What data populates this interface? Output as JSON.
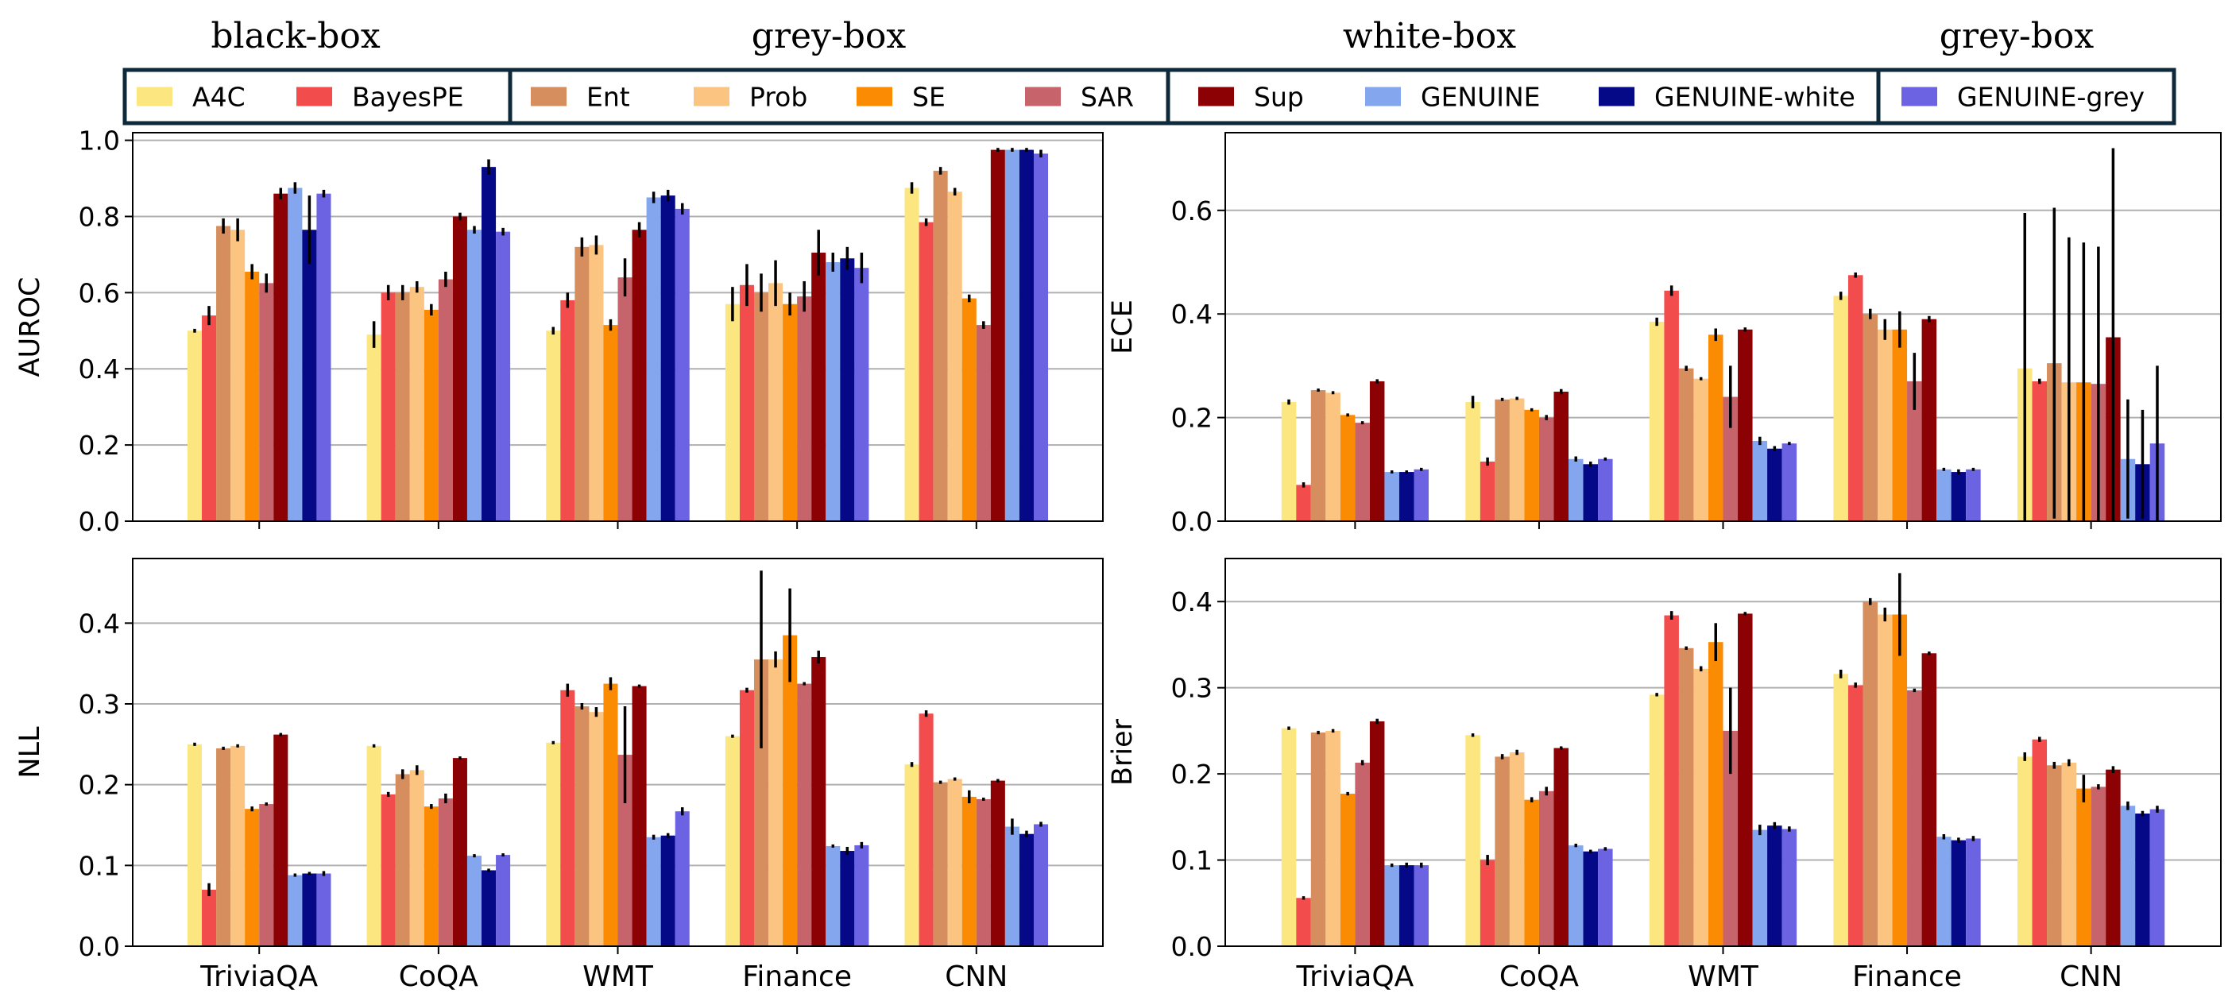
{
  "legend": {
    "groups": [
      {
        "title": "black-box",
        "entries": [
          "A4C",
          "BayesPE"
        ]
      },
      {
        "title": "grey-box",
        "entries": [
          "Ent",
          "Prob",
          "SE",
          "SAR"
        ]
      },
      {
        "title": "white-box",
        "entries": [
          "Sup",
          "GENUINE",
          "GENUINE-white"
        ]
      },
      {
        "title": "grey-box",
        "entries": [
          "GENUINE-grey"
        ]
      }
    ],
    "colors": {
      "A4C": "#FBE680",
      "BayesPE": "#F24C4C",
      "Ent": "#D68E5E",
      "Prob": "#FBC480",
      "SE": "#FC8B04",
      "SAR": "#C7636A",
      "Sup": "#8C0204",
      "GENUINE": "#84A6EE",
      "GENUINE-white": "#050887",
      "GENUINE-grey": "#6C63E2"
    },
    "frame_color": "#0E2A3A"
  },
  "chart_data": [
    {
      "type": "bar",
      "ylabel": "AUROC",
      "ylim": [
        0,
        1.02
      ],
      "yticks": [
        "0.0",
        "0.2",
        "0.4",
        "0.6",
        "0.8",
        "1.0"
      ],
      "grid": "horizontal",
      "categories": [
        "TriviaQA",
        "CoQA",
        "WMT",
        "Finance",
        "CNN"
      ],
      "show_xticklabels": false,
      "series": [
        {
          "name": "A4C",
          "values": [
            0.5,
            0.49,
            0.5,
            0.57,
            0.875
          ],
          "errors": [
            0.005,
            0.035,
            0.01,
            0.045,
            0.015
          ]
        },
        {
          "name": "BayesPE",
          "values": [
            0.54,
            0.6,
            0.58,
            0.62,
            0.785
          ],
          "errors": [
            0.025,
            0.02,
            0.02,
            0.055,
            0.01
          ]
        },
        {
          "name": "Ent",
          "values": [
            0.775,
            0.6,
            0.72,
            0.6,
            0.92
          ],
          "errors": [
            0.02,
            0.02,
            0.025,
            0.05,
            0.01
          ]
        },
        {
          "name": "Prob",
          "values": [
            0.765,
            0.615,
            0.725,
            0.625,
            0.865
          ],
          "errors": [
            0.03,
            0.015,
            0.025,
            0.06,
            0.01
          ]
        },
        {
          "name": "SE",
          "values": [
            0.655,
            0.555,
            0.515,
            0.57,
            0.585
          ],
          "errors": [
            0.02,
            0.015,
            0.015,
            0.03,
            0.01
          ]
        },
        {
          "name": "SAR",
          "values": [
            0.625,
            0.635,
            0.64,
            0.59,
            0.515
          ],
          "errors": [
            0.025,
            0.02,
            0.05,
            0.04,
            0.01
          ]
        },
        {
          "name": "Sup",
          "values": [
            0.86,
            0.8,
            0.765,
            0.705,
            0.975
          ],
          "errors": [
            0.015,
            0.01,
            0.02,
            0.06,
            0.005
          ]
        },
        {
          "name": "GENUINE",
          "values": [
            0.875,
            0.765,
            0.85,
            0.68,
            0.975
          ],
          "errors": [
            0.015,
            0.01,
            0.015,
            0.025,
            0.005
          ]
        },
        {
          "name": "GENUINE-white",
          "values": [
            0.765,
            0.93,
            0.855,
            0.69,
            0.975
          ],
          "errors": [
            0.09,
            0.02,
            0.015,
            0.03,
            0.005
          ]
        },
        {
          "name": "GENUINE-grey",
          "values": [
            0.86,
            0.76,
            0.82,
            0.665,
            0.965
          ],
          "errors": [
            0.01,
            0.01,
            0.015,
            0.04,
            0.01
          ]
        }
      ]
    },
    {
      "type": "bar",
      "ylabel": "ECE",
      "ylim": [
        0,
        0.75
      ],
      "yticks": [
        "0.0",
        "0.2",
        "0.4",
        "0.6"
      ],
      "grid": "horizontal",
      "categories": [
        "TriviaQA",
        "CoQA",
        "WMT",
        "Finance",
        "CNN"
      ],
      "show_xticklabels": false,
      "series": [
        {
          "name": "A4C",
          "values": [
            0.23,
            0.23,
            0.385,
            0.435,
            0.295
          ],
          "errors": [
            0.005,
            0.012,
            0.008,
            0.008,
            0.3
          ]
        },
        {
          "name": "BayesPE",
          "values": [
            0.07,
            0.115,
            0.445,
            0.475,
            0.27
          ],
          "errors": [
            0.005,
            0.008,
            0.01,
            0.005,
            0.005
          ]
        },
        {
          "name": "Ent",
          "values": [
            0.253,
            0.235,
            0.295,
            0.4,
            0.305
          ],
          "errors": [
            0.003,
            0.003,
            0.005,
            0.01,
            0.3
          ]
        },
        {
          "name": "Prob",
          "values": [
            0.248,
            0.237,
            0.275,
            0.37,
            0.268
          ],
          "errors": [
            0.003,
            0.003,
            0.003,
            0.02,
            0.28
          ]
        },
        {
          "name": "SE",
          "values": [
            0.205,
            0.215,
            0.36,
            0.37,
            0.268
          ],
          "errors": [
            0.003,
            0.003,
            0.012,
            0.035,
            0.27
          ]
        },
        {
          "name": "SAR",
          "values": [
            0.19,
            0.2,
            0.24,
            0.27,
            0.265
          ],
          "errors": [
            0.003,
            0.005,
            0.06,
            0.055,
            0.265
          ]
        },
        {
          "name": "Sup",
          "values": [
            0.27,
            0.25,
            0.37,
            0.39,
            0.355
          ],
          "errors": [
            0.004,
            0.005,
            0.004,
            0.006,
            0.365
          ]
        },
        {
          "name": "GENUINE",
          "values": [
            0.095,
            0.12,
            0.155,
            0.1,
            0.12
          ],
          "errors": [
            0.003,
            0.005,
            0.008,
            0.003,
            0.115
          ]
        },
        {
          "name": "GENUINE-white",
          "values": [
            0.095,
            0.11,
            0.14,
            0.095,
            0.11
          ],
          "errors": [
            0.003,
            0.005,
            0.005,
            0.005,
            0.105
          ]
        },
        {
          "name": "GENUINE-grey",
          "values": [
            0.1,
            0.12,
            0.15,
            0.1,
            0.15
          ],
          "errors": [
            0.003,
            0.003,
            0.003,
            0.003,
            0.15
          ]
        }
      ]
    },
    {
      "type": "bar",
      "ylabel": "NLL",
      "ylim": [
        0,
        0.48
      ],
      "yticks": [
        "0.0",
        "0.1",
        "0.2",
        "0.3",
        "0.4"
      ],
      "grid": "horizontal",
      "categories": [
        "TriviaQA",
        "CoQA",
        "WMT",
        "Finance",
        "CNN"
      ],
      "show_xticklabels": true,
      "series": [
        {
          "name": "A4C",
          "values": [
            0.25,
            0.248,
            0.252,
            0.26,
            0.225
          ],
          "errors": [
            0.002,
            0.002,
            0.002,
            0.002,
            0.003
          ]
        },
        {
          "name": "BayesPE",
          "values": [
            0.07,
            0.188,
            0.317,
            0.317,
            0.288
          ],
          "errors": [
            0.008,
            0.003,
            0.008,
            0.003,
            0.004
          ]
        },
        {
          "name": "Ent",
          "values": [
            0.245,
            0.213,
            0.297,
            0.355,
            0.203
          ],
          "errors": [
            0.002,
            0.006,
            0.004,
            0.11,
            0.002
          ]
        },
        {
          "name": "Prob",
          "values": [
            0.248,
            0.218,
            0.29,
            0.355,
            0.207
          ],
          "errors": [
            0.002,
            0.006,
            0.006,
            0.01,
            0.002
          ]
        },
        {
          "name": "SE",
          "values": [
            0.17,
            0.173,
            0.325,
            0.385,
            0.185
          ],
          "errors": [
            0.003,
            0.003,
            0.008,
            0.058,
            0.008
          ]
        },
        {
          "name": "SAR",
          "values": [
            0.176,
            0.183,
            0.237,
            0.325,
            0.182
          ],
          "errors": [
            0.002,
            0.006,
            0.06,
            0.002,
            0.002
          ]
        },
        {
          "name": "Sup",
          "values": [
            0.262,
            0.233,
            0.322,
            0.358,
            0.205
          ],
          "errors": [
            0.002,
            0.002,
            0.002,
            0.008,
            0.002
          ]
        },
        {
          "name": "GENUINE",
          "values": [
            0.088,
            0.112,
            0.135,
            0.124,
            0.148
          ],
          "errors": [
            0.002,
            0.002,
            0.003,
            0.002,
            0.01
          ]
        },
        {
          "name": "GENUINE-white",
          "values": [
            0.09,
            0.094,
            0.137,
            0.118,
            0.139
          ],
          "errors": [
            0.002,
            0.002,
            0.003,
            0.005,
            0.004
          ]
        },
        {
          "name": "GENUINE-grey",
          "values": [
            0.09,
            0.113,
            0.167,
            0.125,
            0.151
          ],
          "errors": [
            0.003,
            0.002,
            0.005,
            0.004,
            0.003
          ]
        }
      ]
    },
    {
      "type": "bar",
      "ylabel": "Brier",
      "ylim": [
        0,
        0.45
      ],
      "yticks": [
        "0.0",
        "0.1",
        "0.2",
        "0.3",
        "0.4"
      ],
      "grid": "horizontal",
      "categories": [
        "TriviaQA",
        "CoQA",
        "WMT",
        "Finance",
        "CNN"
      ],
      "show_xticklabels": true,
      "series": [
        {
          "name": "A4C",
          "values": [
            0.253,
            0.245,
            0.292,
            0.316,
            0.22
          ],
          "errors": [
            0.002,
            0.002,
            0.002,
            0.005,
            0.005
          ]
        },
        {
          "name": "BayesPE",
          "values": [
            0.056,
            0.1,
            0.384,
            0.303,
            0.24
          ],
          "errors": [
            0.002,
            0.006,
            0.005,
            0.003,
            0.003
          ]
        },
        {
          "name": "Ent",
          "values": [
            0.248,
            0.22,
            0.346,
            0.4,
            0.21
          ],
          "errors": [
            0.002,
            0.003,
            0.002,
            0.004,
            0.004
          ]
        },
        {
          "name": "Prob",
          "values": [
            0.25,
            0.225,
            0.322,
            0.385,
            0.213
          ],
          "errors": [
            0.002,
            0.003,
            0.003,
            0.008,
            0.004
          ]
        },
        {
          "name": "SE",
          "values": [
            0.177,
            0.17,
            0.353,
            0.385,
            0.183
          ],
          "errors": [
            0.002,
            0.003,
            0.022,
            0.048,
            0.016
          ]
        },
        {
          "name": "SAR",
          "values": [
            0.213,
            0.18,
            0.25,
            0.297,
            0.185
          ],
          "errors": [
            0.003,
            0.005,
            0.05,
            0.002,
            0.003
          ]
        },
        {
          "name": "Sup",
          "values": [
            0.261,
            0.23,
            0.386,
            0.34,
            0.205
          ],
          "errors": [
            0.003,
            0.002,
            0.002,
            0.002,
            0.004
          ]
        },
        {
          "name": "GENUINE",
          "values": [
            0.094,
            0.117,
            0.135,
            0.127,
            0.163
          ],
          "errors": [
            0.002,
            0.002,
            0.006,
            0.003,
            0.005
          ]
        },
        {
          "name": "GENUINE-white",
          "values": [
            0.094,
            0.11,
            0.14,
            0.123,
            0.154
          ],
          "errors": [
            0.003,
            0.002,
            0.004,
            0.003,
            0.003
          ]
        },
        {
          "name": "GENUINE-grey",
          "values": [
            0.094,
            0.113,
            0.136,
            0.125,
            0.159
          ],
          "errors": [
            0.003,
            0.002,
            0.003,
            0.003,
            0.004
          ]
        }
      ]
    }
  ]
}
